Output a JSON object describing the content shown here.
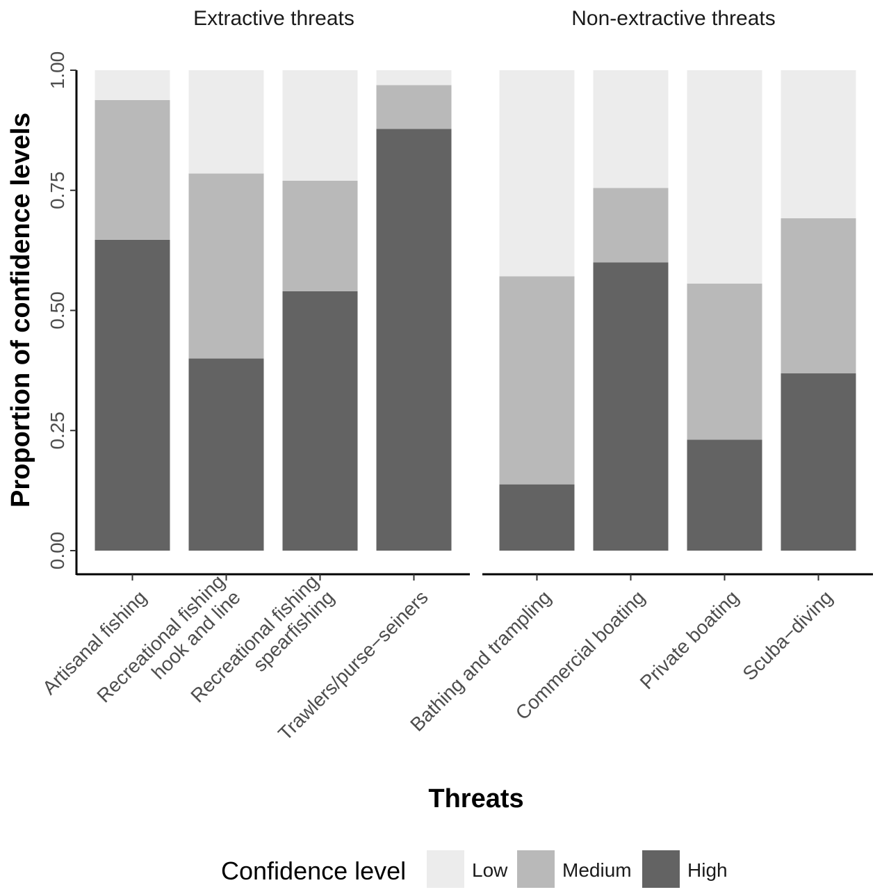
{
  "chart_data": {
    "type": "bar",
    "stacked": true,
    "xlabel": "Threats",
    "ylabel": "Proportion of confidence levels",
    "ylim": [
      0,
      1
    ],
    "yticks": [
      "0.00",
      "0.25",
      "0.50",
      "0.75",
      "1.00"
    ],
    "grid": false,
    "legend": {
      "title": "Confidence level",
      "position": "bottom",
      "entries": [
        {
          "name": "Low",
          "color": "#ececec"
        },
        {
          "name": "Medium",
          "color": "#b9b9b9"
        },
        {
          "name": "High",
          "color": "#636363"
        }
      ]
    },
    "panels": [
      {
        "title": "Extractive threats",
        "categories": [
          [
            "Artisanal fishing"
          ],
          [
            "Recreational fishing",
            "hook and line"
          ],
          [
            "Recreational fishing",
            "spearfishing"
          ],
          [
            "Trawlers/purse−seiners"
          ]
        ],
        "series": [
          {
            "name": "High",
            "values": [
              0.647,
              0.4,
              0.54,
              0.878
            ]
          },
          {
            "name": "Medium",
            "values": [
              0.291,
              0.385,
              0.23,
              0.091
            ]
          },
          {
            "name": "Low",
            "values": [
              0.062,
              0.215,
              0.23,
              0.031
            ]
          }
        ]
      },
      {
        "title": "Non-extractive threats",
        "categories": [
          [
            "Bathing and trampling"
          ],
          [
            "Commercial boating"
          ],
          [
            "Private boating"
          ],
          [
            "Scuba−diving"
          ]
        ],
        "series": [
          {
            "name": "High",
            "values": [
              0.138,
              0.6,
              0.231,
              0.369
            ]
          },
          {
            "name": "Medium",
            "values": [
              0.433,
              0.155,
              0.325,
              0.323
            ]
          },
          {
            "name": "Low",
            "values": [
              0.429,
              0.245,
              0.444,
              0.308
            ]
          }
        ]
      }
    ]
  }
}
